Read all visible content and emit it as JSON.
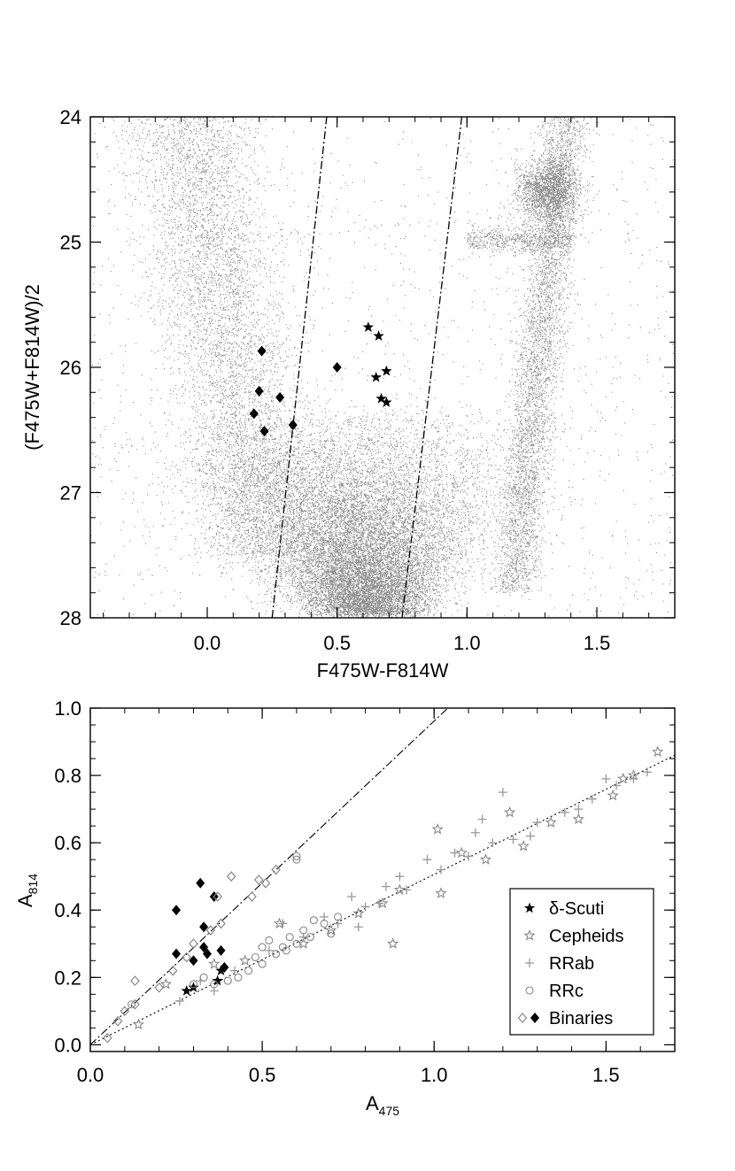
{
  "chart_data": [
    {
      "type": "scatter",
      "title": "",
      "xlabel": "F475W-F814W",
      "ylabel": "(F475W+F814W)/2",
      "xlim": [
        -0.45,
        1.8
      ],
      "ylim": [
        28.0,
        24.0
      ],
      "y_inverted": true,
      "xticks": [
        "0.0",
        "0.5",
        "1.0",
        "1.5"
      ],
      "yticks": [
        "24",
        "25",
        "26",
        "27",
        "28"
      ],
      "grid": false,
      "background_population": {
        "description_color": "#8c8c8c",
        "components": [
          {
            "name_visible": false,
            "feature": "main sequence / turnoff",
            "x_center": 0.6,
            "y_range": [
              26.3,
              28.0
            ]
          },
          {
            "name_visible": false,
            "feature": "blue plume",
            "x_range": [
              -0.2,
              0.4
            ],
            "y_range": [
              24.0,
              27.2
            ]
          },
          {
            "name_visible": false,
            "feature": "red giant branch",
            "x_range": [
              1.1,
              1.45
            ],
            "y_range": [
              24.0,
              27.5
            ]
          },
          {
            "name_visible": false,
            "feature": "red clump",
            "x_center": 1.31,
            "y_center": 24.6
          }
        ]
      },
      "series": [
        {
          "marker": "diamond-filled",
          "points": [
            [
              0.21,
              25.87
            ],
            [
              0.2,
              26.19
            ],
            [
              0.28,
              26.24
            ],
            [
              0.18,
              26.37
            ],
            [
              0.22,
              26.51
            ],
            [
              0.33,
              26.46
            ],
            [
              0.5,
              26.0
            ]
          ]
        },
        {
          "marker": "star-filled",
          "points": [
            [
              0.62,
              25.68
            ],
            [
              0.66,
              25.75
            ],
            [
              0.69,
              26.03
            ],
            [
              0.65,
              26.08
            ],
            [
              0.67,
              26.25
            ],
            [
              0.69,
              26.28
            ]
          ]
        }
      ],
      "lines": [
        {
          "style": "dash-dot",
          "from": [
            0.25,
            28.0
          ],
          "to": [
            0.46,
            24.0
          ]
        },
        {
          "style": "dash-dot",
          "from": [
            0.75,
            28.0
          ],
          "to": [
            0.98,
            24.0
          ]
        }
      ]
    },
    {
      "type": "scatter",
      "title": "",
      "xlabel": "A",
      "xlabel_sub": "475",
      "ylabel": "A",
      "ylabel_sub": "814",
      "xlim": [
        0.0,
        1.7
      ],
      "ylim": [
        -0.02,
        1.0
      ],
      "xticks": [
        "0.0",
        "0.5",
        "1.0",
        "1.5"
      ],
      "yticks": [
        "0.0",
        "0.2",
        "0.4",
        "0.6",
        "0.8",
        "1.0"
      ],
      "grid": false,
      "legend": {
        "position": "lower-right",
        "entries": [
          {
            "label": "δ-Scuti",
            "marker": "star-filled",
            "color": "#000000"
          },
          {
            "label": "Cepheids",
            "marker": "star-open",
            "color": "#888888"
          },
          {
            "label": "RRab",
            "marker": "plus",
            "color": "#999999"
          },
          {
            "label": "RRc",
            "marker": "circle-open",
            "color": "#888888"
          },
          {
            "label": "Binaries",
            "marker": "diamond-open-and-filled",
            "color": "#888888"
          }
        ]
      },
      "lines": [
        {
          "style": "dash-dot",
          "from": [
            0.0,
            0.0
          ],
          "to": [
            1.04,
            1.0
          ]
        },
        {
          "style": "dotted",
          "from": [
            0.0,
            0.0
          ],
          "to": [
            1.7,
            0.86
          ]
        }
      ],
      "series": [
        {
          "name": "δ-Scuti",
          "marker": "star-filled",
          "points": [
            [
              0.28,
              0.16
            ],
            [
              0.3,
              0.17
            ],
            [
              0.37,
              0.19
            ],
            [
              0.38,
              0.22
            ]
          ]
        },
        {
          "name": "Cepheids",
          "marker": "star-open",
          "points": [
            [
              0.14,
              0.06
            ],
            [
              0.22,
              0.18
            ],
            [
              0.36,
              0.24
            ],
            [
              0.45,
              0.25
            ],
            [
              0.55,
              0.36
            ],
            [
              0.62,
              0.3
            ],
            [
              0.7,
              0.34
            ],
            [
              0.78,
              0.39
            ],
            [
              0.85,
              0.42
            ],
            [
              0.88,
              0.3
            ],
            [
              0.9,
              0.46
            ],
            [
              1.01,
              0.64
            ],
            [
              1.02,
              0.45
            ],
            [
              1.08,
              0.57
            ],
            [
              1.15,
              0.55
            ],
            [
              1.22,
              0.69
            ],
            [
              1.26,
              0.59
            ],
            [
              1.34,
              0.66
            ],
            [
              1.42,
              0.67
            ],
            [
              1.52,
              0.74
            ],
            [
              1.55,
              0.79
            ],
            [
              1.58,
              0.8
            ],
            [
              1.65,
              0.87
            ]
          ]
        },
        {
          "name": "RRab",
          "marker": "plus",
          "points": [
            [
              0.26,
              0.13
            ],
            [
              0.32,
              0.19
            ],
            [
              0.36,
              0.16
            ],
            [
              0.42,
              0.22
            ],
            [
              0.52,
              0.28
            ],
            [
              0.56,
              0.36
            ],
            [
              0.62,
              0.32
            ],
            [
              0.68,
              0.38
            ],
            [
              0.72,
              0.36
            ],
            [
              0.76,
              0.44
            ],
            [
              0.78,
              0.35
            ],
            [
              0.8,
              0.41
            ],
            [
              0.84,
              0.42
            ],
            [
              0.86,
              0.47
            ],
            [
              0.9,
              0.5
            ],
            [
              0.92,
              0.46
            ],
            [
              0.98,
              0.55
            ],
            [
              1.02,
              0.52
            ],
            [
              1.06,
              0.57
            ],
            [
              1.1,
              0.56
            ],
            [
              1.12,
              0.63
            ],
            [
              1.14,
              0.67
            ],
            [
              1.17,
              0.6
            ],
            [
              1.2,
              0.75
            ],
            [
              1.23,
              0.61
            ],
            [
              1.28,
              0.62
            ],
            [
              1.3,
              0.66
            ],
            [
              1.38,
              0.69
            ],
            [
              1.42,
              0.7
            ],
            [
              1.46,
              0.73
            ],
            [
              1.5,
              0.79
            ],
            [
              1.53,
              0.77
            ],
            [
              1.58,
              0.79
            ],
            [
              1.62,
              0.81
            ]
          ]
        },
        {
          "name": "RRc",
          "marker": "circle-open",
          "points": [
            [
              0.12,
              0.12
            ],
            [
              0.3,
              0.18
            ],
            [
              0.33,
              0.2
            ],
            [
              0.36,
              0.18
            ],
            [
              0.4,
              0.19
            ],
            [
              0.43,
              0.2
            ],
            [
              0.46,
              0.22
            ],
            [
              0.48,
              0.26
            ],
            [
              0.5,
              0.29
            ],
            [
              0.5,
              0.24
            ],
            [
              0.52,
              0.31
            ],
            [
              0.54,
              0.27
            ],
            [
              0.56,
              0.29
            ],
            [
              0.57,
              0.28
            ],
            [
              0.58,
              0.32
            ],
            [
              0.6,
              0.3
            ],
            [
              0.6,
              0.55
            ],
            [
              0.6,
              0.56
            ],
            [
              0.62,
              0.34
            ],
            [
              0.64,
              0.32
            ],
            [
              0.65,
              0.37
            ],
            [
              0.68,
              0.36
            ],
            [
              0.7,
              0.33
            ],
            [
              0.72,
              0.38
            ]
          ]
        },
        {
          "name": "Binaries",
          "marker": "diamond-filled",
          "points": [
            [
              0.25,
              0.4
            ],
            [
              0.25,
              0.27
            ],
            [
              0.3,
              0.25
            ],
            [
              0.32,
              0.48
            ],
            [
              0.33,
              0.35
            ],
            [
              0.33,
              0.29
            ],
            [
              0.36,
              0.44
            ],
            [
              0.38,
              0.28
            ],
            [
              0.39,
              0.23
            ],
            [
              0.34,
              0.27
            ]
          ]
        },
        {
          "name": "Binaries",
          "marker": "diamond-open",
          "points": [
            [
              0.05,
              0.02
            ],
            [
              0.08,
              0.07
            ],
            [
              0.1,
              0.1
            ],
            [
              0.13,
              0.12
            ],
            [
              0.13,
              0.19
            ],
            [
              0.2,
              0.17
            ],
            [
              0.24,
              0.22
            ],
            [
              0.28,
              0.26
            ],
            [
              0.3,
              0.3
            ],
            [
              0.35,
              0.34
            ],
            [
              0.37,
              0.44
            ],
            [
              0.38,
              0.36
            ],
            [
              0.41,
              0.5
            ],
            [
              0.47,
              0.44
            ],
            [
              0.49,
              0.49
            ],
            [
              0.51,
              0.48
            ],
            [
              0.54,
              0.52
            ]
          ]
        }
      ]
    }
  ]
}
